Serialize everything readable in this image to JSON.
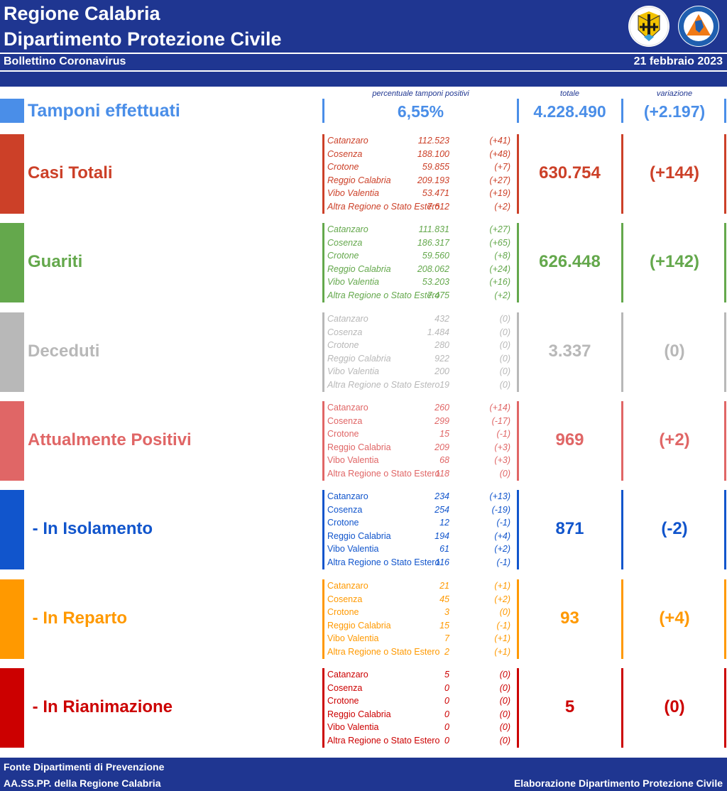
{
  "header": {
    "title1": "Regione Calabria",
    "title2": "Dipartimento Protezione Civile",
    "subtitle": "Bollettino Coronavirus",
    "date": "21 febbraio 2023"
  },
  "columns": {
    "pct": "percentuale tamponi positivi",
    "total": "totale",
    "variation": "variazione"
  },
  "tamponi": {
    "label": "Tamponi effettuati",
    "pct": "6,55%",
    "total": "4.228.490",
    "variation": "(+2.197)",
    "color": "#4a8ee8"
  },
  "sections": [
    {
      "id": "casi-totali",
      "label": "Casi Totali",
      "total": "630.754",
      "variation": "(+144)",
      "color": "#cc4028",
      "italic_names": true,
      "rows": [
        {
          "name": "Catanzaro",
          "value": "112.523",
          "var": "(+41)"
        },
        {
          "name": "Cosenza",
          "value": "188.100",
          "var": "(+48)"
        },
        {
          "name": "Crotone",
          "value": "59.855",
          "var": "(+7)"
        },
        {
          "name": "Reggio Calabria",
          "value": "209.193",
          "var": "(+27)"
        },
        {
          "name": "Vibo Valentia",
          "value": "53.471",
          "var": "(+19)"
        },
        {
          "name": "Altra Regione o Stato Estero",
          "value": "7.612",
          "var": "(+2)"
        }
      ]
    },
    {
      "id": "guariti",
      "label": "Guariti",
      "total": "626.448",
      "variation": "(+142)",
      "color": "#64a84c",
      "italic_names": true,
      "rows": [
        {
          "name": "Catanzaro",
          "value": "111.831",
          "var": "(+27)"
        },
        {
          "name": "Cosenza",
          "value": "186.317",
          "var": "(+65)"
        },
        {
          "name": "Crotone",
          "value": "59.560",
          "var": "(+8)"
        },
        {
          "name": "Reggio Calabria",
          "value": "208.062",
          "var": "(+24)"
        },
        {
          "name": "Vibo Valentia",
          "value": "53.203",
          "var": "(+16)"
        },
        {
          "name": "Altra Regione o Stato Estero",
          "value": "7.475",
          "var": "(+2)"
        }
      ]
    },
    {
      "id": "deceduti",
      "label": "Deceduti",
      "total": "3.337",
      "variation": "(0)",
      "color": "#b8b8b8",
      "italic_names": true,
      "rows": [
        {
          "name": "Catanzaro",
          "value": "432",
          "var": "(0)"
        },
        {
          "name": "Cosenza",
          "value": "1.484",
          "var": "(0)"
        },
        {
          "name": "Crotone",
          "value": "280",
          "var": "(0)"
        },
        {
          "name": "Reggio Calabria",
          "value": "922",
          "var": "(0)"
        },
        {
          "name": "Vibo Valentia",
          "value": "200",
          "var": "(0)"
        },
        {
          "name": "Altra Regione o Stato Estero",
          "value": "19",
          "var": "(0)"
        }
      ]
    },
    {
      "id": "attualmente-positivi",
      "label": "Attualmente Positivi",
      "total": "969",
      "variation": "(+2)",
      "color": "#e06666",
      "italic_names": false,
      "rows": [
        {
          "name": "Catanzaro",
          "value": "260",
          "var": "(+14)"
        },
        {
          "name": "Cosenza",
          "value": "299",
          "var": "(-17)"
        },
        {
          "name": "Crotone",
          "value": "15",
          "var": "(-1)"
        },
        {
          "name": "Reggio Calabria",
          "value": "209",
          "var": "(+3)"
        },
        {
          "name": "Vibo Valentia",
          "value": "68",
          "var": "(+3)"
        },
        {
          "name": "Altra Regione o Stato Estero",
          "value": "118",
          "var": "(0)"
        }
      ]
    },
    {
      "id": "in-isolamento",
      "label": " - In Isolamento",
      "total": "871",
      "variation": "(-2)",
      "color": "#1155cc",
      "italic_names": false,
      "rows": [
        {
          "name": "Catanzaro",
          "value": "234",
          "var": "(+13)"
        },
        {
          "name": "Cosenza",
          "value": "254",
          "var": "(-19)"
        },
        {
          "name": "Crotone",
          "value": "12",
          "var": "(-1)"
        },
        {
          "name": "Reggio Calabria",
          "value": "194",
          "var": "(+4)"
        },
        {
          "name": "Vibo Valentia",
          "value": "61",
          "var": "(+2)"
        },
        {
          "name": "Altra Regione o Stato Estero",
          "value": "116",
          "var": "(-1)"
        }
      ]
    },
    {
      "id": "in-reparto",
      "label": " - In Reparto",
      "total": "93",
      "variation": "(+4)",
      "color": "#ff9900",
      "italic_names": false,
      "rows": [
        {
          "name": "Catanzaro",
          "value": "21",
          "var": "(+1)"
        },
        {
          "name": "Cosenza",
          "value": "45",
          "var": "(+2)"
        },
        {
          "name": "Crotone",
          "value": "3",
          "var": "(0)"
        },
        {
          "name": "Reggio Calabria",
          "value": "15",
          "var": "(-1)"
        },
        {
          "name": "Vibo Valentia",
          "value": "7",
          "var": "(+1)"
        },
        {
          "name": "Altra Regione o Stato Estero",
          "value": "2",
          "var": "(+1)"
        }
      ]
    },
    {
      "id": "in-rianimazione",
      "label": " - In Rianimazione",
      "total": "5",
      "variation": "(0)",
      "color": "#cc0000",
      "italic_names": false,
      "rows": [
        {
          "name": "Catanzaro",
          "value": "5",
          "var": "(0)"
        },
        {
          "name": "Cosenza",
          "value": "0",
          "var": "(0)"
        },
        {
          "name": "Crotone",
          "value": "0",
          "var": "(0)"
        },
        {
          "name": "Reggio Calabria",
          "value": "0",
          "var": "(0)"
        },
        {
          "name": "Vibo Valentia",
          "value": "0",
          "var": "(0)"
        },
        {
          "name": "Altra Regione o Stato Estero",
          "value": "0",
          "var": "(0)"
        }
      ]
    }
  ],
  "footer": {
    "source1": "Fonte Dipartimenti di Prevenzione",
    "source2": "AA.SS.PP.  della Regione Calabria",
    "credit": "Elaborazione Dipartimento Protezione Civile"
  },
  "colors": {
    "header_bg": "#1f3691"
  },
  "icons": {
    "logo1": "calabria-coat-of-arms-icon",
    "logo2": "protezione-civile-logo-icon"
  }
}
